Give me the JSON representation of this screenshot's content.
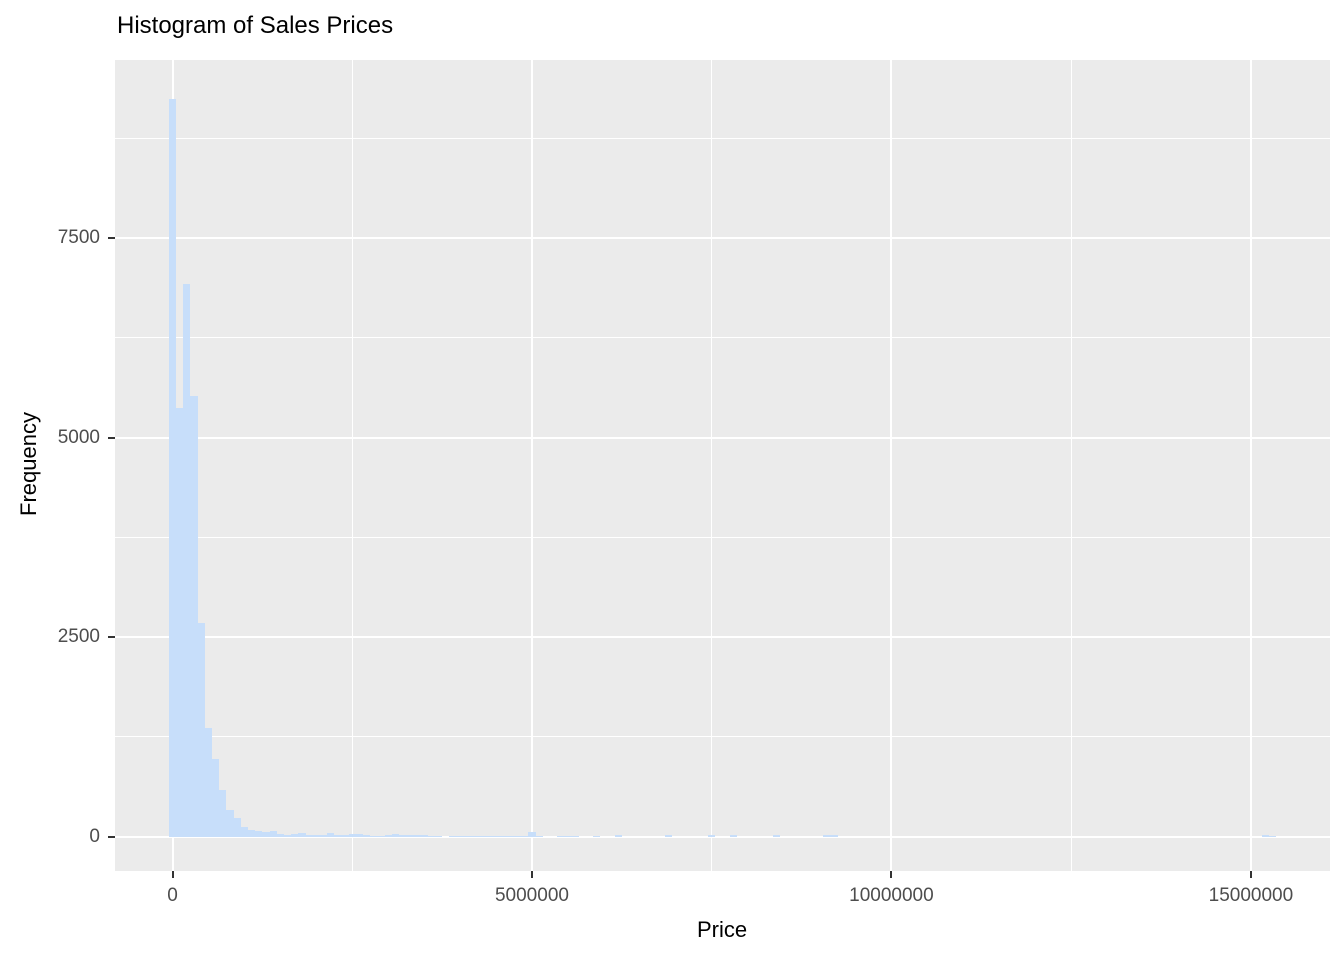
{
  "page": {
    "background": "#ffffff"
  },
  "chart_data": {
    "type": "histogram",
    "title": "Histogram of Sales Prices",
    "xlabel": "Price",
    "ylabel": "Frequency",
    "legend": "none",
    "grid": "white major and minor gridlines on gray panel",
    "xlim": [
      -800000,
      16100000
    ],
    "ylim": [
      -430,
      9730
    ],
    "bin_width": 100000,
    "x_ticks": [
      {
        "value": 0,
        "label": "0"
      },
      {
        "value": 5000000,
        "label": "5000000"
      },
      {
        "value": 10000000,
        "label": "10000000"
      },
      {
        "value": 15000000,
        "label": "15000000"
      }
    ],
    "y_ticks": [
      {
        "value": 0,
        "label": "0"
      },
      {
        "value": 2500,
        "label": "2500"
      },
      {
        "value": 5000,
        "label": "5000"
      },
      {
        "value": 7500,
        "label": "7500"
      }
    ],
    "x_minor_gridlines": [
      2500000,
      7500000,
      12500000
    ],
    "y_minor_gridlines": [
      1250,
      3750,
      6250,
      8750
    ],
    "bars": [
      [
        0,
        9240
      ],
      [
        100000,
        5370
      ],
      [
        200000,
        6930
      ],
      [
        300000,
        5520
      ],
      [
        400000,
        2680
      ],
      [
        500000,
        1360
      ],
      [
        600000,
        970
      ],
      [
        700000,
        585
      ],
      [
        800000,
        335
      ],
      [
        900000,
        230
      ],
      [
        1000000,
        125
      ],
      [
        1100000,
        85
      ],
      [
        1200000,
        75
      ],
      [
        1300000,
        62
      ],
      [
        1400000,
        65
      ],
      [
        1500000,
        34
      ],
      [
        1600000,
        25
      ],
      [
        1700000,
        34
      ],
      [
        1800000,
        50
      ],
      [
        1900000,
        25
      ],
      [
        2000000,
        21
      ],
      [
        2100000,
        21
      ],
      [
        2200000,
        46
      ],
      [
        2300000,
        25
      ],
      [
        2400000,
        15
      ],
      [
        2500000,
        30
      ],
      [
        2600000,
        30
      ],
      [
        2700000,
        15
      ],
      [
        2800000,
        12
      ],
      [
        2900000,
        12
      ],
      [
        3000000,
        23
      ],
      [
        3100000,
        28
      ],
      [
        3200000,
        25
      ],
      [
        3300000,
        27
      ],
      [
        3400000,
        25
      ],
      [
        3500000,
        15
      ],
      [
        3600000,
        12
      ],
      [
        3700000,
        12
      ],
      [
        3900000,
        12
      ],
      [
        4000000,
        12
      ],
      [
        4100000,
        12
      ],
      [
        4200000,
        12
      ],
      [
        4300000,
        12
      ],
      [
        4400000,
        12
      ],
      [
        4500000,
        12
      ],
      [
        4600000,
        12
      ],
      [
        4700000,
        12
      ],
      [
        4800000,
        12
      ],
      [
        4900000,
        12
      ],
      [
        5000000,
        63
      ],
      [
        5100000,
        12
      ],
      [
        5400000,
        12
      ],
      [
        5500000,
        12
      ],
      [
        5600000,
        12
      ],
      [
        5900000,
        12
      ],
      [
        6200000,
        15
      ],
      [
        6900000,
        15
      ],
      [
        7500000,
        15
      ],
      [
        7800000,
        15
      ],
      [
        8400000,
        18
      ],
      [
        9100000,
        15
      ],
      [
        9200000,
        15
      ],
      [
        15200000,
        15
      ],
      [
        15300000,
        12
      ]
    ],
    "colors": {
      "bar_fill": "#c7defa",
      "panel_background": "#ebebeb",
      "gridline": "#ffffff",
      "tick_label": "#4d4d4d",
      "tick_mark": "#333333",
      "title_text": "#000000"
    }
  }
}
